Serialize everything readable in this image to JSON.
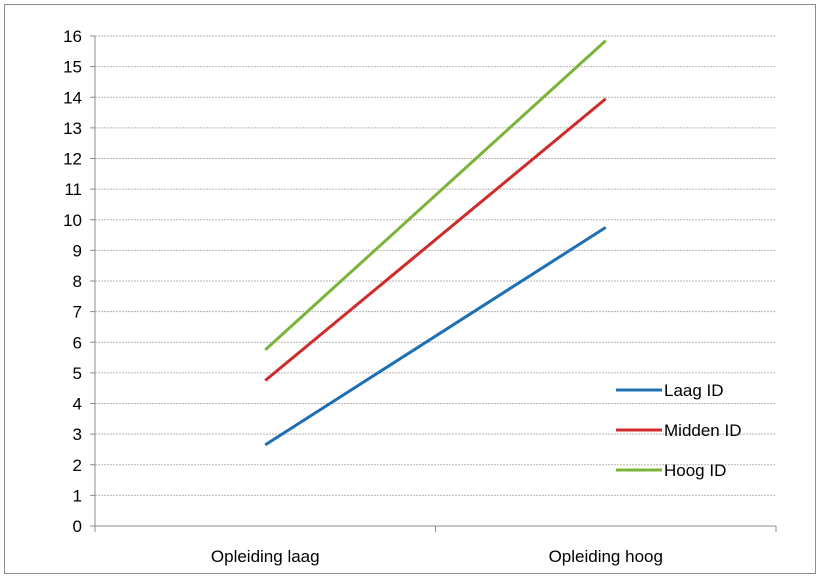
{
  "chart_data": {
    "type": "line",
    "categories": [
      "Opleiding laag",
      "Opleiding hoog"
    ],
    "series": [
      {
        "name": "Laag ID",
        "values": [
          2.65,
          9.75
        ],
        "color": "#1f6fb4"
      },
      {
        "name": "Midden ID",
        "values": [
          4.75,
          13.95
        ],
        "color": "#d12a2a"
      },
      {
        "name": "Hoog ID",
        "values": [
          5.75,
          15.85
        ],
        "color": "#7ab43a"
      }
    ],
    "ylim": [
      0,
      16
    ],
    "yticks": [
      0,
      1,
      2,
      3,
      4,
      5,
      6,
      7,
      8,
      9,
      10,
      11,
      12,
      13,
      14,
      15,
      16
    ],
    "grid": true,
    "legend_position": "lower-right",
    "title": "",
    "xlabel": "",
    "ylabel": ""
  }
}
